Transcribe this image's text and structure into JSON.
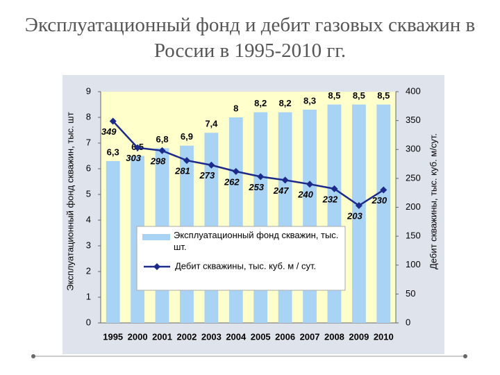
{
  "title": "Эксплуатационный фонд и дебит газовых скважин в России в 1995-2010 гг.",
  "chart_data": {
    "type": "bar-line",
    "categories": [
      "1995",
      "2000",
      "2001",
      "2002",
      "2003",
      "2004",
      "2005",
      "2006",
      "2007",
      "2008",
      "2009",
      "2010"
    ],
    "y_label": "Эксплуатационный фонд скважин, тыс. шт",
    "y2_label": "Дебит скважины, тыс. куб. м/сут.",
    "ylim": [
      0,
      9
    ],
    "yticks": [
      0,
      1,
      2,
      3,
      4,
      5,
      6,
      7,
      8,
      9
    ],
    "y2lim": [
      0,
      400
    ],
    "y2ticks": [
      0,
      50,
      100,
      150,
      200,
      250,
      300,
      350,
      400
    ],
    "series": [
      {
        "name": "Эксплуатационный фонд скважин, тыс. шт.",
        "type": "bar",
        "color": "#a9d3f5",
        "values": [
          6.3,
          6.5,
          6.8,
          6.9,
          7.4,
          8,
          8.2,
          8.2,
          8.3,
          8.5,
          8.5,
          8.5
        ],
        "value_labels": [
          "6,3",
          "6,5",
          "6,8",
          "6,9",
          "7,4",
          "8",
          "8,2",
          "8,2",
          "8,3",
          "8,5",
          "8,5",
          "8,5"
        ]
      },
      {
        "name": "Дебит скважины, тыс. куб. м / сут.",
        "type": "line",
        "axis": "y2",
        "color": "#1c2a8a",
        "values": [
          349,
          303,
          298,
          281,
          273,
          262,
          253,
          247,
          240,
          232,
          203,
          230
        ]
      }
    ]
  }
}
